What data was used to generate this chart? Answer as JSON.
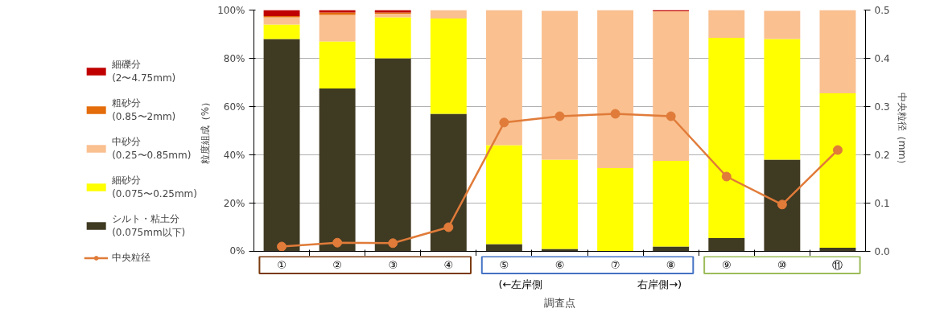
{
  "chart_data": {
    "type": "bar",
    "stacked": true,
    "xlabel": "調査点",
    "ylabel": "粒度組成（%）",
    "y2label": "中央粒径（mm）",
    "categories": [
      "①",
      "②",
      "③",
      "④",
      "⑤",
      "⑥",
      "⑦",
      "⑧",
      "⑨",
      "⑩",
      "⑪"
    ],
    "series": [
      {
        "name": "シルト・粘土分\n(0.075mm以下)",
        "color": "#3f3a22",
        "values": [
          88,
          67.5,
          80,
          57,
          3,
          1,
          0,
          2,
          5.5,
          38,
          1.5
        ]
      },
      {
        "name": "細砂分\n(0.075〜0.25mm)",
        "color": "#ffff00",
        "values": [
          6,
          19.5,
          17,
          39.5,
          41,
          37,
          34.5,
          35.5,
          83,
          50,
          64
        ]
      },
      {
        "name": "中砂分\n(0.25〜0.85mm)",
        "color": "#fac090",
        "values": [
          3,
          11,
          1.5,
          3.5,
          56,
          61.7,
          65.5,
          62,
          11.5,
          11.7,
          34.5
        ]
      },
      {
        "name": "粗砂分\n(0.85〜2mm)",
        "color": "#e46c0a",
        "values": [
          0.5,
          1,
          0.5,
          0,
          0,
          0,
          0,
          0,
          0,
          0,
          0
        ]
      },
      {
        "name": "細礫分\n(2〜4.75mm)",
        "color": "#c00000",
        "values": [
          2.5,
          1,
          1,
          0,
          0,
          null,
          0,
          0.5,
          0,
          null,
          0
        ]
      },
      {
        "name": "中央粒径",
        "type": "line",
        "axis": "y2",
        "color": "#e07b39",
        "marker": "circle",
        "values": [
          0.01,
          0.018,
          0.017,
          0.05,
          0.267,
          0.28,
          0.285,
          0.28,
          0.155,
          0.097,
          0.21
        ]
      }
    ],
    "ylim": [
      0,
      100
    ],
    "yticks": [
      {
        "value": 0,
        "label": "0%"
      },
      {
        "value": 20,
        "label": "20%"
      },
      {
        "value": 40,
        "label": "40%"
      },
      {
        "value": 60,
        "label": "60%"
      },
      {
        "value": 80,
        "label": "80%"
      },
      {
        "value": 100,
        "label": "100%"
      }
    ],
    "y2lim": [
      0,
      0.5
    ],
    "y2ticks": [
      {
        "value": 0,
        "label": "0.0"
      },
      {
        "value": 0.1,
        "label": "0.1"
      },
      {
        "value": 0.2,
        "label": "0.2"
      },
      {
        "value": 0.3,
        "label": "0.3"
      },
      {
        "value": 0.4,
        "label": "0.4"
      },
      {
        "value": 0.5,
        "label": "0.5"
      }
    ],
    "grid": "y",
    "legend": "left",
    "annotations": [
      "(←左岸側",
      "右岸側→)"
    ]
  }
}
